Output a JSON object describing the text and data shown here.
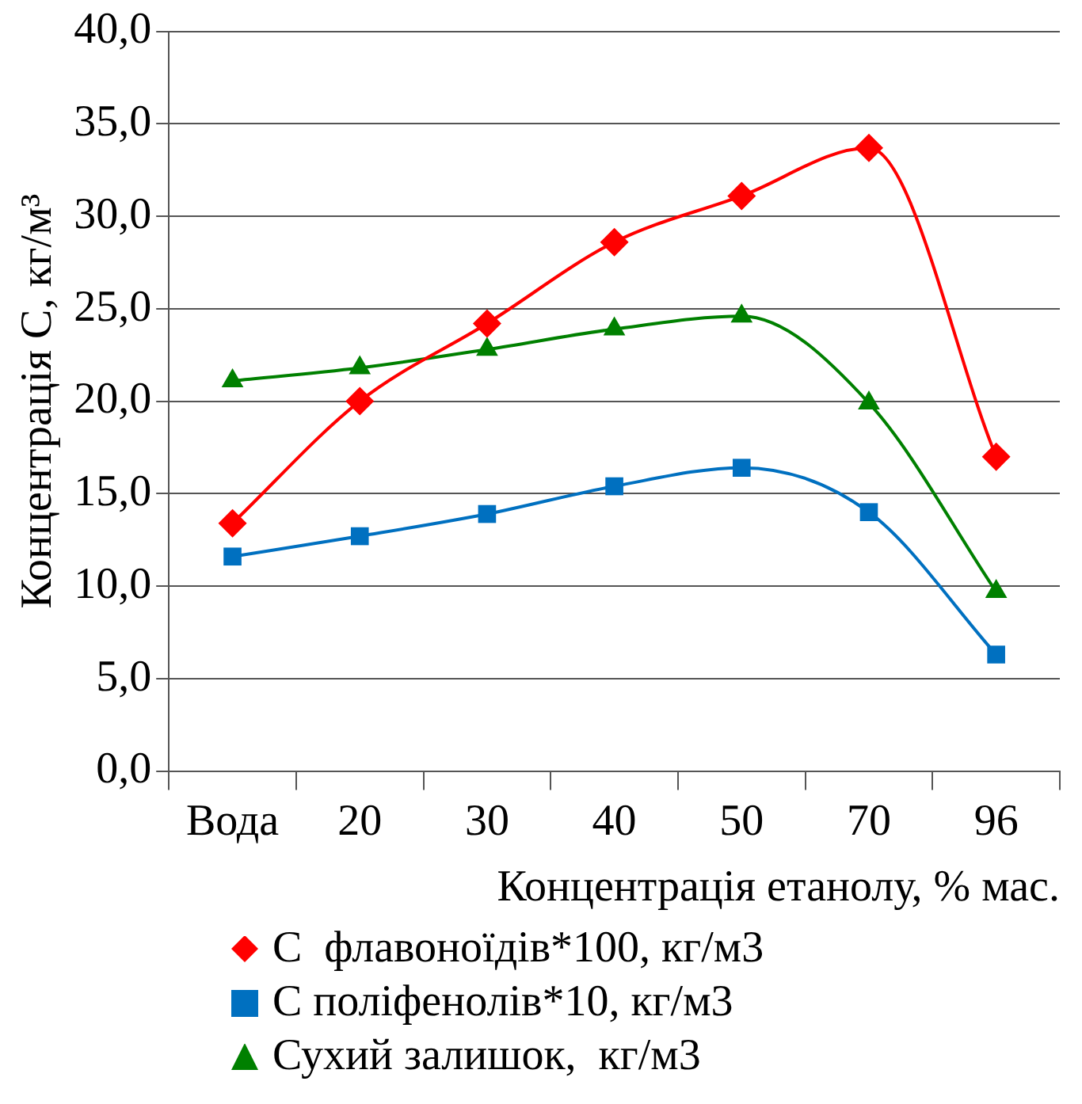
{
  "chart_data": {
    "type": "line",
    "xlabel": "Концентрація етанолу, % мас.",
    "ylabel": "Концентрація С, кг/м³",
    "categories": [
      "Вода",
      "20",
      "30",
      "40",
      "50",
      "70",
      "96"
    ],
    "series": [
      {
        "name": "С  флавоноїдів*100, кг/м3",
        "color": "#ff0000",
        "marker": "diamond",
        "values": [
          13.4,
          20.0,
          24.2,
          28.6,
          31.1,
          33.7,
          17.0
        ]
      },
      {
        "name": "С поліфенолів*10, кг/м3",
        "color": "#0070c0",
        "marker": "square",
        "values": [
          11.6,
          12.7,
          13.9,
          15.4,
          16.4,
          14.0,
          6.3
        ]
      },
      {
        "name": "Сухий залишок,  кг/м3",
        "color": "#008000",
        "marker": "triangle",
        "values": [
          21.1,
          21.8,
          22.8,
          23.9,
          24.6,
          19.9,
          9.7
        ]
      }
    ],
    "ylim": [
      0,
      40
    ],
    "yticks": [
      {
        "value": 0,
        "label": "0,0"
      },
      {
        "value": 5,
        "label": "5,0"
      },
      {
        "value": 10,
        "label": "10,0"
      },
      {
        "value": 15,
        "label": "15,0"
      },
      {
        "value": 20,
        "label": "20,0"
      },
      {
        "value": 25,
        "label": "25,0"
      },
      {
        "value": 30,
        "label": "30,0"
      },
      {
        "value": 35,
        "label": "35,0"
      },
      {
        "value": 40,
        "label": "40,0"
      }
    ],
    "grid": "y",
    "legend": "bottom",
    "line_style": "solid"
  }
}
